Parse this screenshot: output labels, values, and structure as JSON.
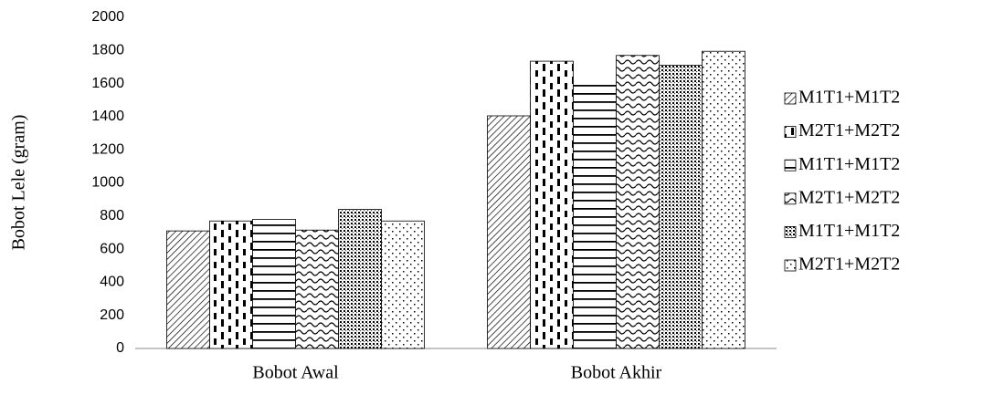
{
  "chart_data": {
    "type": "bar",
    "y_label": "Bobot Lele (gram)",
    "categories": [
      "Bobot Awal",
      "Bobot Akhir"
    ],
    "series": [
      {
        "name": "M1T1+M1T2",
        "pattern": "diag",
        "values": [
          710,
          1405
        ]
      },
      {
        "name": "M2T1+M2T2",
        "pattern": "dash",
        "values": [
          770,
          1735
        ]
      },
      {
        "name": "M1T1+M1T2",
        "pattern": "horiz",
        "values": [
          780,
          1590
        ]
      },
      {
        "name": "M2T1+M2T2",
        "pattern": "wave",
        "values": [
          715,
          1770
        ]
      },
      {
        "name": "M1T1+M1T2",
        "pattern": "check",
        "values": [
          840,
          1710
        ]
      },
      {
        "name": "M2T1+M2T2",
        "pattern": "dots",
        "values": [
          770,
          1795
        ]
      }
    ],
    "ylim": [
      0,
      2000
    ],
    "yticks": [
      0,
      200,
      400,
      600,
      800,
      1000,
      1200,
      1400,
      1600,
      1800,
      2000
    ],
    "legend": "right"
  }
}
